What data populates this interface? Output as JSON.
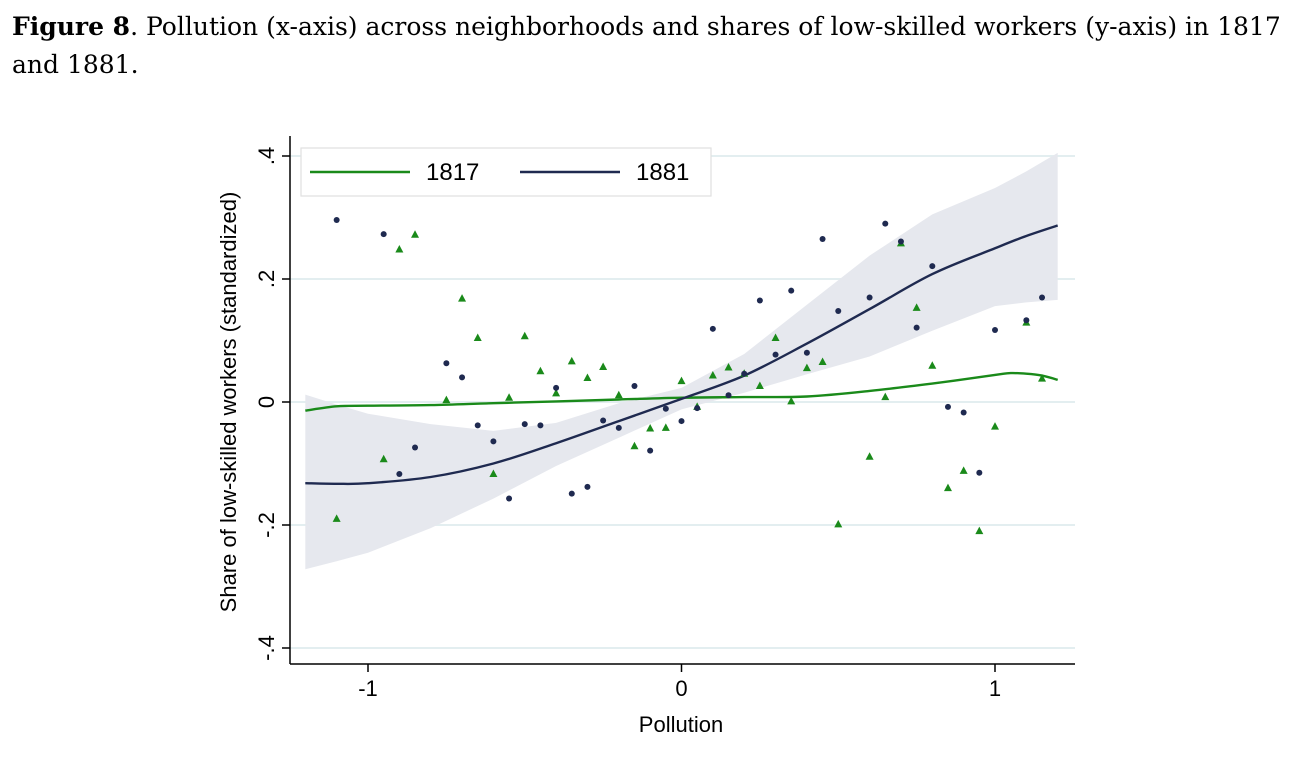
{
  "caption": {
    "label": "Figure 8",
    "text": ". Pollution (x-axis) across neighborhoods and shares of low-skilled workers (y-axis) in 1817 and 1881."
  },
  "chart_data": {
    "type": "scatter",
    "title": "",
    "xlabel": "Pollution",
    "ylabel": "Share of low-skilled workers (standardized)",
    "xlim": [
      -1.25,
      1.25
    ],
    "ylim": [
      -0.42,
      0.43
    ],
    "xticks": [
      -1,
      0,
      1
    ],
    "xtick_labels": [
      "-1",
      "0",
      "1"
    ],
    "yticks": [
      -0.4,
      -0.2,
      0,
      0.2,
      0.4
    ],
    "ytick_labels": [
      "-.4",
      "-.2",
      "0",
      ".2",
      ".4"
    ],
    "grid": "horizontal",
    "legend_position": "top-left",
    "series": [
      {
        "name": "1817",
        "color": "#1a8a1a",
        "marker": "triangle",
        "points": [
          [
            -1.1,
            -0.19
          ],
          [
            -0.95,
            -0.093
          ],
          [
            -0.9,
            0.248
          ],
          [
            -0.85,
            0.272
          ],
          [
            -0.75,
            0.003
          ],
          [
            -0.7,
            0.168
          ],
          [
            -0.65,
            0.104
          ],
          [
            -0.6,
            -0.117
          ],
          [
            -0.55,
            0.007
          ],
          [
            -0.5,
            0.107
          ],
          [
            -0.45,
            0.05
          ],
          [
            -0.4,
            0.014
          ],
          [
            -0.35,
            0.066
          ],
          [
            -0.3,
            0.039
          ],
          [
            -0.25,
            0.057
          ],
          [
            -0.2,
            0.011
          ],
          [
            -0.15,
            -0.072
          ],
          [
            -0.1,
            -0.043
          ],
          [
            -0.05,
            -0.042
          ],
          [
            0.0,
            0.034
          ],
          [
            0.05,
            -0.008
          ],
          [
            0.1,
            0.043
          ],
          [
            0.15,
            0.056
          ],
          [
            0.2,
            0.046
          ],
          [
            0.25,
            0.026
          ],
          [
            0.3,
            0.104
          ],
          [
            0.35,
            0.001
          ],
          [
            0.4,
            0.055
          ],
          [
            0.45,
            0.065
          ],
          [
            0.5,
            -0.199
          ],
          [
            0.6,
            -0.089
          ],
          [
            0.65,
            0.008
          ],
          [
            0.7,
            0.258
          ],
          [
            0.75,
            0.153
          ],
          [
            0.8,
            0.059
          ],
          [
            0.85,
            -0.14
          ],
          [
            0.9,
            -0.112
          ],
          [
            0.95,
            -0.21
          ],
          [
            1.0,
            -0.04
          ],
          [
            1.1,
            0.129
          ],
          [
            1.15,
            0.038
          ]
        ],
        "fit": [
          [
            -1.2,
            -0.014
          ],
          [
            -1.1,
            -0.007
          ],
          [
            -1.0,
            -0.006
          ],
          [
            -0.8,
            -0.005
          ],
          [
            -0.6,
            -0.002
          ],
          [
            -0.4,
            0.001
          ],
          [
            -0.2,
            0.004
          ],
          [
            0.0,
            0.007
          ],
          [
            0.2,
            0.008
          ],
          [
            0.4,
            0.009
          ],
          [
            0.6,
            0.018
          ],
          [
            0.8,
            0.03
          ],
          [
            1.0,
            0.044
          ],
          [
            1.05,
            0.047
          ],
          [
            1.1,
            0.046
          ],
          [
            1.15,
            0.043
          ],
          [
            1.2,
            0.036
          ]
        ]
      },
      {
        "name": "1881",
        "color": "#1f2a50",
        "marker": "circle",
        "points": [
          [
            -1.1,
            0.296
          ],
          [
            -0.95,
            0.273
          ],
          [
            -0.9,
            -0.117
          ],
          [
            -0.85,
            -0.074
          ],
          [
            -0.75,
            0.063
          ],
          [
            -0.7,
            0.04
          ],
          [
            -0.65,
            -0.038
          ],
          [
            -0.6,
            -0.064
          ],
          [
            -0.55,
            -0.157
          ],
          [
            -0.5,
            -0.036
          ],
          [
            -0.45,
            -0.038
          ],
          [
            -0.4,
            0.023
          ],
          [
            -0.35,
            -0.149
          ],
          [
            -0.3,
            -0.138
          ],
          [
            -0.25,
            -0.03
          ],
          [
            -0.2,
            -0.042
          ],
          [
            -0.15,
            0.026
          ],
          [
            -0.1,
            -0.079
          ],
          [
            -0.05,
            -0.011
          ],
          [
            0.0,
            -0.031
          ],
          [
            0.05,
            -0.01
          ],
          [
            0.1,
            0.119
          ],
          [
            0.15,
            0.011
          ],
          [
            0.2,
            0.046
          ],
          [
            0.25,
            0.165
          ],
          [
            0.3,
            0.077
          ],
          [
            0.35,
            0.181
          ],
          [
            0.4,
            0.08
          ],
          [
            0.45,
            0.265
          ],
          [
            0.5,
            0.148
          ],
          [
            0.6,
            0.17
          ],
          [
            0.65,
            0.29
          ],
          [
            0.7,
            0.261
          ],
          [
            0.75,
            0.121
          ],
          [
            0.8,
            0.221
          ],
          [
            0.85,
            -0.008
          ],
          [
            0.9,
            -0.017
          ],
          [
            0.95,
            -0.115
          ],
          [
            1.0,
            0.117
          ],
          [
            1.1,
            0.133
          ],
          [
            1.15,
            0.17
          ]
        ],
        "fit": [
          [
            -1.2,
            -0.132
          ],
          [
            -1.1,
            -0.133
          ],
          [
            -1.0,
            -0.132
          ],
          [
            -0.8,
            -0.122
          ],
          [
            -0.6,
            -0.1
          ],
          [
            -0.4,
            -0.067
          ],
          [
            -0.2,
            -0.031
          ],
          [
            0.0,
            0.005
          ],
          [
            0.2,
            0.043
          ],
          [
            0.4,
            0.095
          ],
          [
            0.6,
            0.151
          ],
          [
            0.8,
            0.208
          ],
          [
            1.0,
            0.25
          ],
          [
            1.1,
            0.27
          ],
          [
            1.2,
            0.287
          ]
        ],
        "ci_band": {
          "color": "#e6e8ee",
          "upper": [
            [
              -1.2,
              0.012
            ],
            [
              -1.1,
              -0.004
            ],
            [
              -1.0,
              -0.019
            ],
            [
              -0.8,
              -0.036
            ],
            [
              -0.6,
              -0.047
            ],
            [
              -0.4,
              -0.034
            ],
            [
              -0.2,
              -0.002
            ],
            [
              0.0,
              0.023
            ],
            [
              0.2,
              0.078
            ],
            [
              0.4,
              0.158
            ],
            [
              0.6,
              0.238
            ],
            [
              0.8,
              0.305
            ],
            [
              1.0,
              0.348
            ],
            [
              1.1,
              0.375
            ],
            [
              1.2,
              0.405
            ]
          ],
          "lower": [
            [
              -1.2,
              -0.272
            ],
            [
              -1.1,
              -0.259
            ],
            [
              -1.0,
              -0.245
            ],
            [
              -0.8,
              -0.205
            ],
            [
              -0.6,
              -0.157
            ],
            [
              -0.4,
              -0.104
            ],
            [
              -0.2,
              -0.058
            ],
            [
              0.0,
              -0.012
            ],
            [
              0.2,
              0.015
            ],
            [
              0.4,
              0.045
            ],
            [
              0.6,
              0.074
            ],
            [
              0.8,
              0.116
            ],
            [
              1.0,
              0.156
            ],
            [
              1.1,
              0.162
            ],
            [
              1.2,
              0.166
            ]
          ]
        }
      }
    ]
  }
}
